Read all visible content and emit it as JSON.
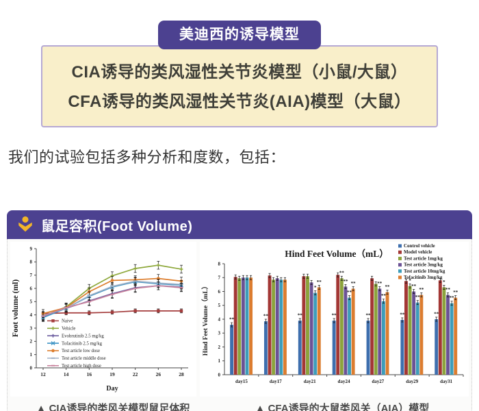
{
  "header_box": {
    "tab_title": "美迪西的诱导模型",
    "lines": [
      "CIA诱导的类风湿性关节炎模型（小鼠/大鼠）",
      "CFA诱导的类风湿性关节炎(AIA)模型（大鼠）"
    ]
  },
  "intro_text": "我们的试验包括多种分析和度数，包括：",
  "panel": {
    "title": "鼠足容积(Foot Volume)",
    "icon": "person-icon",
    "captions": [
      "▲ CIA诱导的类风关模型鼠足体积",
      "▲ CFA诱导的大鼠类风关（AIA）模型"
    ]
  },
  "colors": {
    "purple": "#4c4190",
    "cream": "#f9efca",
    "cream_border": "#b5a8d4",
    "icon_yellow": "#f2b52a"
  },
  "chart_data": [
    {
      "type": "line",
      "title": "",
      "xlabel": "Day",
      "ylabel": "Foot volume (ml)",
      "x": [
        12,
        14,
        16,
        19,
        22,
        26,
        28
      ],
      "ylim": [
        0,
        9
      ],
      "grid": false,
      "legend_position": "inside-left",
      "series": [
        {
          "name": "Naive",
          "color": "#a43c3c",
          "marker": "square",
          "err": 0.15,
          "values": [
            4.1,
            4.15,
            4.15,
            4.2,
            4.3,
            4.3,
            4.3
          ]
        },
        {
          "name": "Vehicle",
          "color": "#8fa93d",
          "marker": "plus",
          "err": 0.3,
          "values": [
            3.9,
            4.6,
            6.0,
            6.95,
            7.5,
            7.75,
            7.45
          ]
        },
        {
          "name": "Evobrutinib 2.5 mg/kg",
          "color": "#6a5a9e",
          "marker": "plus",
          "err": 0.3,
          "values": [
            3.85,
            4.5,
            5.05,
            5.6,
            6.05,
            6.2,
            6.1
          ]
        },
        {
          "name": "Tofacitinib 2.5 mg/kg",
          "color": "#3b92c4",
          "marker": "x",
          "err": 0.3,
          "values": [
            3.8,
            4.5,
            5.4,
            6.1,
            6.5,
            6.35,
            6.25
          ]
        },
        {
          "name": "Test article low dose",
          "color": "#dd7e2e",
          "marker": "circle",
          "err": 0.3,
          "values": [
            4.1,
            4.55,
            5.75,
            6.6,
            6.65,
            6.75,
            6.55
          ]
        },
        {
          "name": "Test article middle dose",
          "color": "#9fb0c6",
          "marker": "dash",
          "err": 0.3,
          "values": [
            3.95,
            4.5,
            5.45,
            6.15,
            6.55,
            6.4,
            6.3
          ]
        },
        {
          "name": "Test article high dose",
          "color": "#c9849e",
          "marker": "dash",
          "err": 0.3,
          "values": [
            3.9,
            4.55,
            5.0,
            5.55,
            6.0,
            6.2,
            6.05
          ]
        }
      ]
    },
    {
      "type": "bar",
      "title": "Hind Feet Volume（mL）",
      "ylabel": "Hind Feet Volume（mL）",
      "categories": [
        "day15",
        "day17",
        "day21",
        "day24",
        "day27",
        "day29",
        "day31"
      ],
      "ylim": [
        0,
        8
      ],
      "grid": false,
      "legend_position": "top-right",
      "error_bar": 0.15,
      "series": [
        {
          "name": "Control vehicle",
          "color": "#3e6fae",
          "values": [
            3.6,
            3.85,
            3.9,
            3.9,
            3.9,
            3.95,
            4.0
          ],
          "sig": [
            "**",
            "**",
            "**",
            "**",
            "**",
            "**",
            "**"
          ]
        },
        {
          "name": "Model vehicle",
          "color": "#a33735",
          "values": [
            7.05,
            7.15,
            7.1,
            7.2,
            6.95,
            6.75,
            6.8
          ],
          "sig": [
            "",
            "",
            "",
            "",
            "",
            "",
            ""
          ]
        },
        {
          "name": "Test article 1mg/kg",
          "color": "#8ca33c",
          "values": [
            6.95,
            6.85,
            7.1,
            6.95,
            6.55,
            6.4,
            6.3
          ],
          "sig": [
            "",
            "",
            "",
            "**",
            "",
            "*",
            "*"
          ]
        },
        {
          "name": "Test article 3mg/kg",
          "color": "#6b5295",
          "values": [
            7.0,
            6.95,
            6.65,
            6.35,
            6.2,
            6.0,
            5.75
          ],
          "sig": [
            "",
            "",
            "",
            "**",
            "**",
            "**",
            "**"
          ]
        },
        {
          "name": "Test article 10mg/kg",
          "color": "#3d9dba",
          "values": [
            7.0,
            6.85,
            5.9,
            5.55,
            5.3,
            5.2,
            5.15
          ],
          "sig": [
            "",
            "",
            "*",
            "**",
            "**",
            "**",
            "**"
          ]
        },
        {
          "name": "Tofacitinib 3mg/kg",
          "color": "#dc7d30",
          "values": [
            7.0,
            6.85,
            6.3,
            6.2,
            5.95,
            5.75,
            5.55
          ],
          "sig": [
            "",
            "",
            "**",
            "**",
            "**",
            "**",
            "**"
          ]
        }
      ]
    }
  ]
}
